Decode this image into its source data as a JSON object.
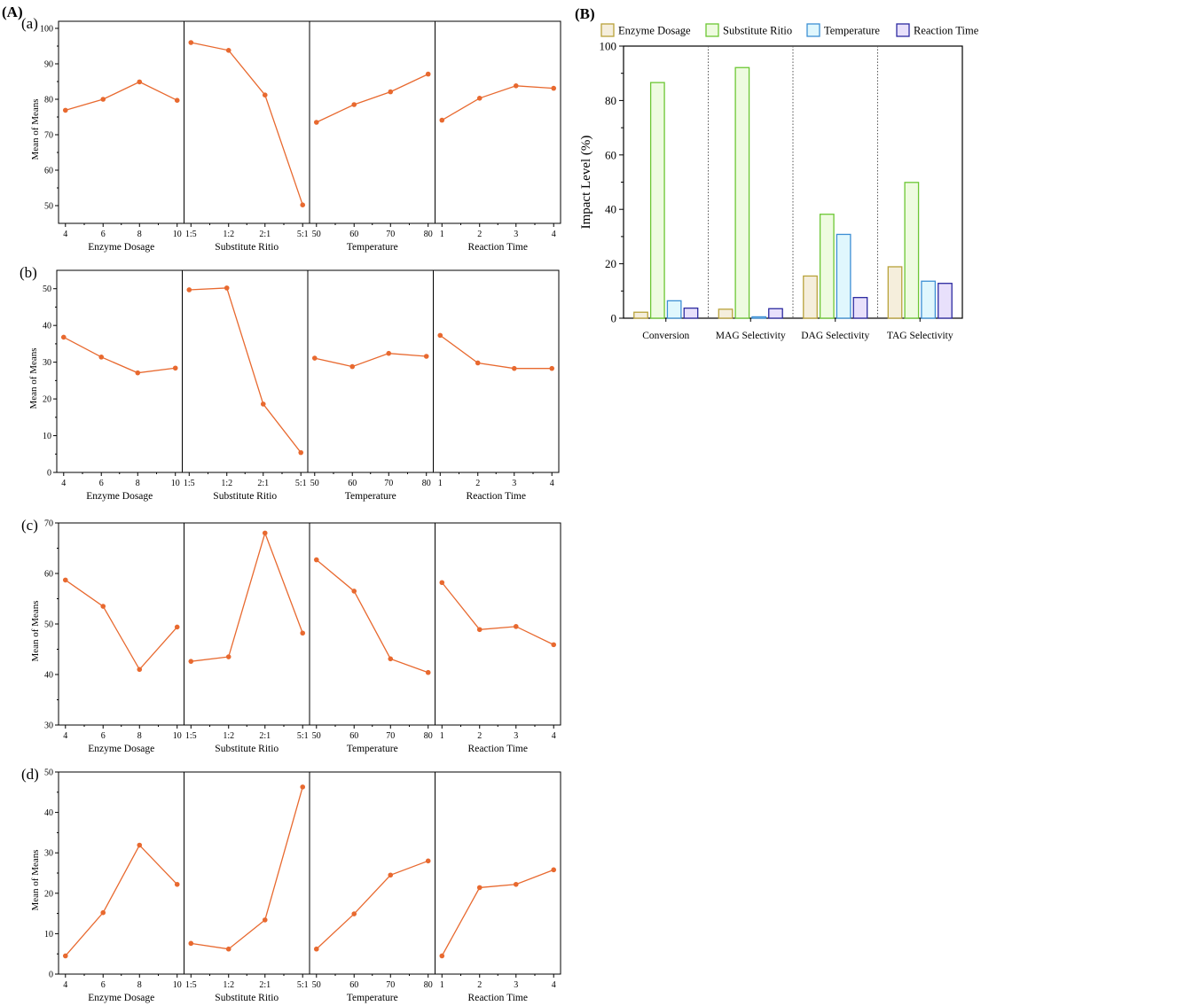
{
  "figure": {
    "label_A": "(A)",
    "label_B": "(B)"
  },
  "chart_data": [
    {
      "type": "line",
      "panel_label": "(a)",
      "ylabel": "Mean of Means",
      "ylim": [
        45,
        102
      ],
      "yticks": [
        50,
        60,
        70,
        80,
        90,
        100
      ],
      "factors": [
        {
          "xlabel": "Enzyme Dosage",
          "categories": [
            "4",
            "6",
            "8",
            "10"
          ],
          "values": [
            76.9,
            80.0,
            84.9,
            79.7
          ]
        },
        {
          "xlabel": "Substitute Ritio",
          "categories": [
            "1:5",
            "1:2",
            "2:1",
            "5:1"
          ],
          "values": [
            96.0,
            93.8,
            81.2,
            50.2
          ]
        },
        {
          "xlabel": "Temperature",
          "categories": [
            "50",
            "60",
            "70",
            "80"
          ],
          "values": [
            73.5,
            78.5,
            82.1,
            87.1
          ]
        },
        {
          "xlabel": "Reaction Time",
          "categories": [
            "1",
            "2",
            "3",
            "4"
          ],
          "values": [
            74.1,
            80.3,
            83.8,
            83.1
          ]
        }
      ]
    },
    {
      "type": "line",
      "panel_label": "(b)",
      "ylabel": "Mean of Means",
      "ylim": [
        0,
        55
      ],
      "yticks": [
        0,
        10,
        20,
        30,
        40,
        50
      ],
      "factors": [
        {
          "xlabel": "Enzyme Dosage",
          "categories": [
            "4",
            "6",
            "8",
            "10"
          ],
          "values": [
            36.8,
            31.4,
            27.1,
            28.4
          ]
        },
        {
          "xlabel": "Substitute Ritio",
          "categories": [
            "1:5",
            "1:2",
            "2:1",
            "5:1"
          ],
          "values": [
            49.7,
            50.2,
            18.6,
            5.4
          ]
        },
        {
          "xlabel": "Temperature",
          "categories": [
            "50",
            "60",
            "70",
            "80"
          ],
          "values": [
            31.1,
            28.8,
            32.4,
            31.6
          ]
        },
        {
          "xlabel": "Reaction Time",
          "categories": [
            "1",
            "2",
            "3",
            "4"
          ],
          "values": [
            37.3,
            29.8,
            28.3,
            28.3
          ]
        }
      ]
    },
    {
      "type": "line",
      "panel_label": "(c)",
      "ylabel": "Mean of Means",
      "ylim": [
        30,
        70
      ],
      "yticks": [
        30,
        40,
        50,
        60,
        70
      ],
      "factors": [
        {
          "xlabel": "Enzyme Dosage",
          "categories": [
            "4",
            "6",
            "8",
            "10"
          ],
          "values": [
            58.7,
            53.5,
            41.0,
            49.4
          ]
        },
        {
          "xlabel": "Substitute Ritio",
          "categories": [
            "1:5",
            "1:2",
            "2:1",
            "5:1"
          ],
          "values": [
            42.6,
            43.5,
            68.0,
            48.2
          ]
        },
        {
          "xlabel": "Temperature",
          "categories": [
            "50",
            "60",
            "70",
            "80"
          ],
          "values": [
            62.7,
            56.5,
            43.1,
            40.4
          ]
        },
        {
          "xlabel": "Reaction Time",
          "categories": [
            "1",
            "2",
            "3",
            "4"
          ],
          "values": [
            58.2,
            48.9,
            49.5,
            45.9
          ]
        }
      ]
    },
    {
      "type": "line",
      "panel_label": "(d)",
      "ylabel": "Mean of Means",
      "ylim": [
        0,
        50
      ],
      "yticks": [
        0,
        10,
        20,
        30,
        40,
        50
      ],
      "factors": [
        {
          "xlabel": "Enzyme Dosage",
          "categories": [
            "4",
            "6",
            "8",
            "10"
          ],
          "values": [
            4.5,
            15.2,
            31.9,
            22.2
          ]
        },
        {
          "xlabel": "Substitute Ritio",
          "categories": [
            "1:5",
            "1:2",
            "2:1",
            "5:1"
          ],
          "values": [
            7.6,
            6.2,
            13.4,
            46.3
          ]
        },
        {
          "xlabel": "Temperature",
          "categories": [
            "50",
            "60",
            "70",
            "80"
          ],
          "values": [
            6.2,
            14.9,
            24.5,
            28.0
          ]
        },
        {
          "xlabel": "Reaction Time",
          "categories": [
            "1",
            "2",
            "3",
            "4"
          ],
          "values": [
            4.5,
            21.4,
            22.2,
            25.8
          ]
        }
      ]
    },
    {
      "type": "bar",
      "panel_label": "(B)",
      "ylabel": "Impact Level (%)",
      "ylim": [
        0,
        100
      ],
      "yticks": [
        0,
        20,
        40,
        60,
        80,
        100
      ],
      "categories": [
        "Conversion",
        "MAG Selectivity",
        "DAG Selectivity",
        "TAG Selectivity"
      ],
      "legend_position": "top",
      "series": [
        {
          "name": "Enzyme Dosage",
          "values": [
            2.2,
            3.3,
            15.5,
            18.9
          ],
          "fill": "#f5eedc",
          "stroke": "#b8a23a"
        },
        {
          "name": "Substitute Ritio",
          "values": [
            86.6,
            92.1,
            38.2,
            49.9
          ],
          "fill": "#eefbe0",
          "stroke": "#6cc734"
        },
        {
          "name": "Temperature",
          "values": [
            6.4,
            0.5,
            30.8,
            13.6
          ],
          "fill": "#e0f7fd",
          "stroke": "#3d8fd4"
        },
        {
          "name": "Reaction Time",
          "values": [
            3.7,
            3.5,
            7.6,
            12.8
          ],
          "fill": "#e8e0fb",
          "stroke": "#2c2aa0"
        }
      ]
    }
  ]
}
